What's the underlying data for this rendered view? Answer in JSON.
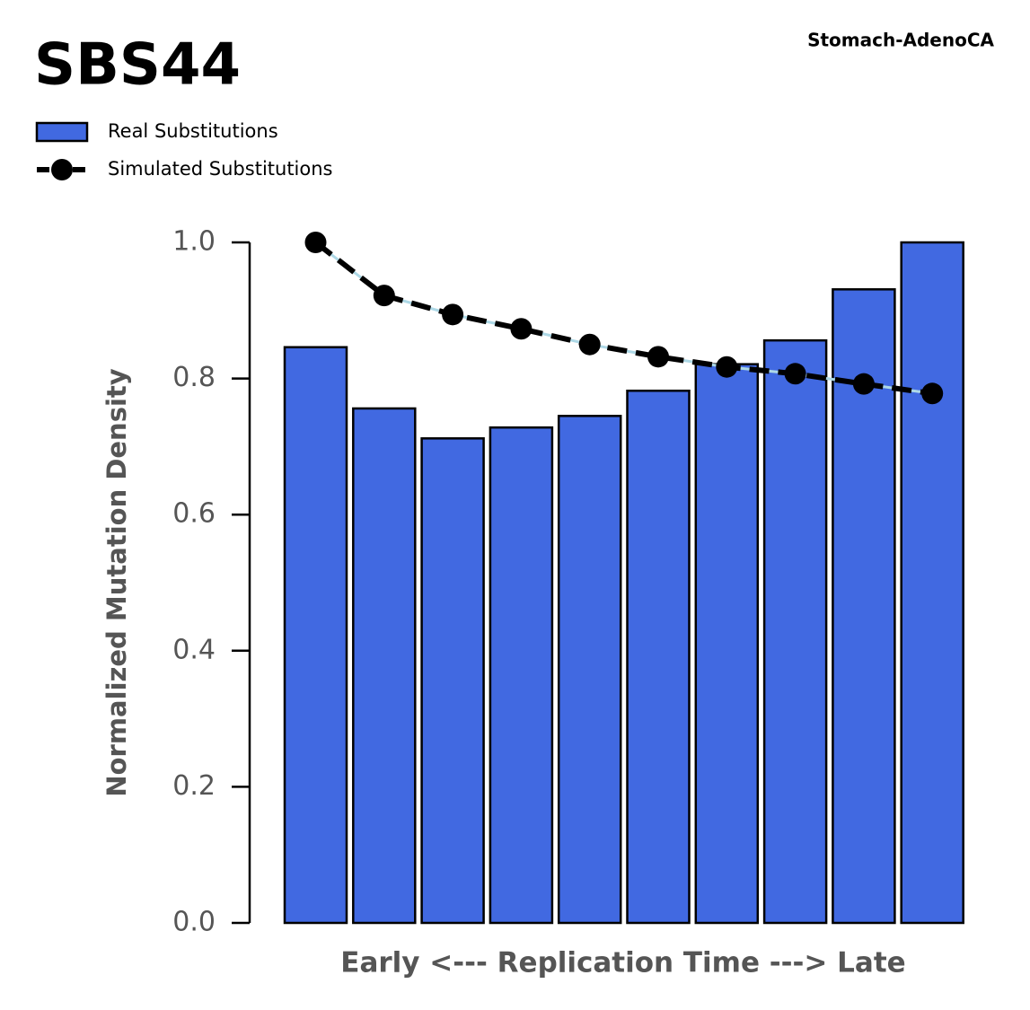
{
  "chart_data": {
    "type": "bar",
    "title": "SBS44",
    "subtitle": "Stomach-AdenoCA",
    "x_label": "Early <--- Replication Time ---> Late",
    "y_label": "Normalized Mutation Density",
    "categories": [
      null,
      null,
      null,
      null,
      null,
      null,
      null,
      null,
      null,
      null
    ],
    "series": [
      {
        "name": "Real Substitutions",
        "type": "bar",
        "color": "#4169e1",
        "values": [
          0.846,
          0.756,
          0.712,
          0.728,
          0.745,
          0.782,
          0.821,
          0.856,
          0.931,
          1.0
        ]
      },
      {
        "name": "Simulated Substitutions",
        "type": "line",
        "color": "#000000",
        "values": [
          1.0,
          0.922,
          0.894,
          0.873,
          0.85,
          0.832,
          0.817,
          0.807,
          0.792,
          0.778
        ]
      }
    ],
    "ylim": [
      0,
      1
    ],
    "yticks": [
      {
        "value": 0,
        "label": "0.0"
      },
      0.2,
      0.4,
      0.6,
      0.8,
      {
        "value": 1,
        "label": "1.0"
      }
    ],
    "legend": "top-left",
    "grid": false
  }
}
